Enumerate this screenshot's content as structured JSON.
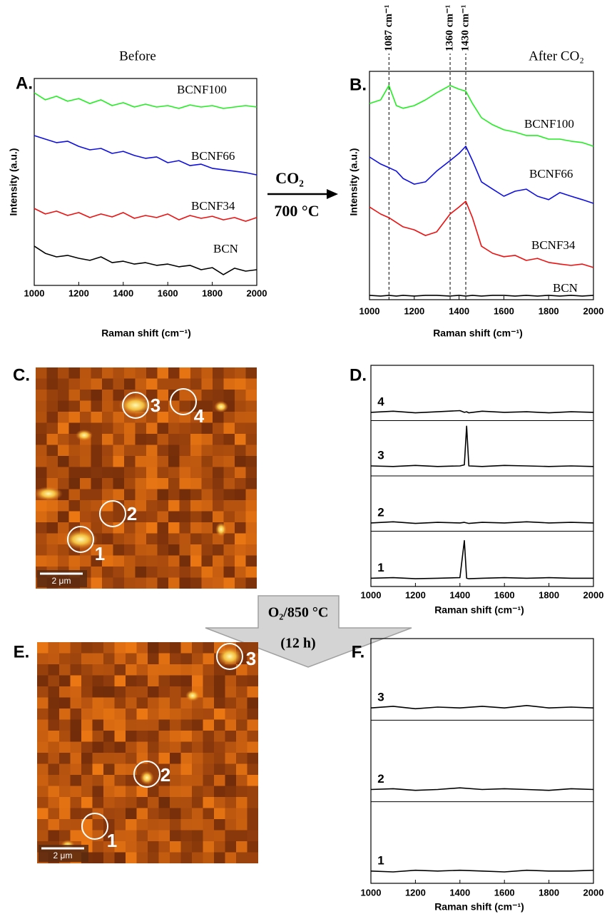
{
  "chart_data": [
    {
      "type": "line",
      "panel_label": "A.",
      "title": "Before",
      "y_label": "Intensity (a.u.)",
      "x_label": "Raman shift (cm⁻¹)",
      "xlim": [
        1000,
        2000
      ],
      "xticks": [
        1000,
        1200,
        1400,
        1600,
        1800,
        2000
      ],
      "ylim": [
        0,
        10
      ],
      "x": [
        1000,
        1050,
        1100,
        1150,
        1200,
        1250,
        1300,
        1350,
        1400,
        1450,
        1500,
        1550,
        1600,
        1650,
        1700,
        1750,
        1800,
        1850,
        1900,
        1950,
        2000
      ],
      "series": [
        {
          "name": "BCNF100",
          "color": "#22ee22",
          "values": [
            9.31,
            8.97,
            9.14,
            8.9,
            9.03,
            8.79,
            8.97,
            8.69,
            8.83,
            8.62,
            8.76,
            8.62,
            8.69,
            8.55,
            8.72,
            8.62,
            8.69,
            8.55,
            8.62,
            8.69,
            8.62
          ]
        },
        {
          "name": "BCNF66",
          "color": "#1010e0",
          "values": [
            7.24,
            7.07,
            6.9,
            6.97,
            6.72,
            6.55,
            6.62,
            6.38,
            6.48,
            6.28,
            6.14,
            6.21,
            5.93,
            6.03,
            5.79,
            5.86,
            5.66,
            5.59,
            5.52,
            5.45,
            5.34
          ]
        },
        {
          "name": "BCNF34",
          "color": "#ee1111",
          "values": [
            3.72,
            3.45,
            3.59,
            3.38,
            3.52,
            3.28,
            3.45,
            3.31,
            3.52,
            3.24,
            3.38,
            3.28,
            3.45,
            3.17,
            3.38,
            3.24,
            3.34,
            3.17,
            3.28,
            3.1,
            3.28
          ]
        },
        {
          "name": "BCN",
          "color": "#000000",
          "values": [
            1.9,
            1.55,
            1.38,
            1.45,
            1.31,
            1.21,
            1.38,
            1.1,
            1.17,
            1.03,
            1.1,
            0.97,
            1.03,
            0.9,
            0.97,
            0.76,
            0.86,
            0.52,
            0.83,
            0.69,
            0.76
          ]
        }
      ]
    },
    {
      "type": "line",
      "panel_label": "B.",
      "title": "After CO₂",
      "y_label": "Intensity (a.u.)",
      "x_label": "Raman shift (cm⁻¹)",
      "xlim": [
        1000,
        2000
      ],
      "xticks": [
        1000,
        1200,
        1400,
        1600,
        1800,
        2000
      ],
      "ylim": [
        0,
        10
      ],
      "markers": [
        {
          "value": 1087,
          "label": "1087 cm⁻¹"
        },
        {
          "value": 1360,
          "label": "1360 cm⁻¹"
        },
        {
          "value": 1430,
          "label": "1430 cm⁻¹"
        }
      ],
      "x": [
        1000,
        1050,
        1087,
        1120,
        1150,
        1200,
        1250,
        1300,
        1360,
        1400,
        1430,
        1460,
        1500,
        1550,
        1600,
        1650,
        1700,
        1750,
        1800,
        1850,
        1900,
        1950,
        2000
      ],
      "series": [
        {
          "name": "BCNF100",
          "color": "#22ee22",
          "values": [
            8.59,
            8.75,
            9.38,
            8.5,
            8.38,
            8.5,
            8.75,
            9.06,
            9.38,
            9.22,
            9.13,
            8.59,
            7.97,
            7.66,
            7.44,
            7.34,
            7.19,
            7.19,
            7.03,
            7.03,
            6.94,
            6.88,
            6.72
          ]
        },
        {
          "name": "BCNF66",
          "color": "#1010e0",
          "values": [
            6.25,
            5.94,
            5.78,
            5.63,
            5.31,
            5.06,
            5.16,
            5.63,
            6.09,
            6.41,
            6.72,
            6.09,
            5.16,
            4.84,
            4.53,
            4.75,
            4.84,
            4.53,
            4.38,
            4.69,
            4.53,
            4.38,
            4.22
          ]
        },
        {
          "name": "BCNF34",
          "color": "#ee1111",
          "values": [
            4.06,
            3.75,
            3.59,
            3.38,
            3.19,
            3.06,
            2.81,
            2.97,
            3.75,
            4.06,
            4.31,
            3.59,
            2.34,
            2.03,
            1.88,
            1.94,
            1.72,
            1.81,
            1.63,
            1.56,
            1.5,
            1.56,
            1.41
          ]
        },
        {
          "name": "BCN",
          "color": "#000000",
          "values": [
            0.19,
            0.16,
            0.19,
            0.16,
            0.19,
            0.16,
            0.19,
            0.19,
            0.16,
            0.19,
            0.16,
            0.19,
            0.16,
            0.19,
            0.19,
            0.16,
            0.19,
            0.16,
            0.19,
            0.16,
            0.19,
            0.16,
            0.19
          ]
        }
      ]
    },
    {
      "type": "line",
      "panel_label": "D.",
      "x_label": "Raman shift (cm⁻¹)",
      "xlim": [
        1000,
        2000
      ],
      "xticks": [
        1000,
        1200,
        1400,
        1600,
        1800,
        2000
      ],
      "ylim": [
        0,
        4
      ],
      "x": [
        1000,
        1100,
        1200,
        1300,
        1400,
        1420,
        1430,
        1440,
        1500,
        1600,
        1700,
        1800,
        1900,
        2000
      ],
      "series": [
        {
          "name": "4",
          "color": "#000000",
          "values": [
            3.15,
            3.17,
            3.14,
            3.16,
            3.18,
            3.15,
            3.16,
            3.14,
            3.17,
            3.15,
            3.16,
            3.14,
            3.16,
            3.15
          ]
        },
        {
          "name": "3",
          "color": "#000000",
          "values": [
            2.18,
            2.17,
            2.19,
            2.17,
            2.18,
            2.2,
            2.9,
            2.18,
            2.17,
            2.19,
            2.18,
            2.17,
            2.18,
            2.17
          ]
        },
        {
          "name": "2",
          "color": "#000000",
          "values": [
            1.15,
            1.17,
            1.14,
            1.16,
            1.15,
            1.16,
            1.15,
            1.14,
            1.16,
            1.15,
            1.17,
            1.15,
            1.16,
            1.15
          ]
        },
        {
          "name": "1",
          "color": "#000000",
          "values": [
            0.15,
            0.16,
            0.14,
            0.15,
            0.16,
            0.83,
            0.15,
            0.14,
            0.15,
            0.16,
            0.15,
            0.16,
            0.15,
            0.15
          ]
        }
      ]
    },
    {
      "type": "line",
      "panel_label": "F.",
      "x_label": "Raman shift (cm⁻¹)",
      "xlim": [
        1000,
        2000
      ],
      "xticks": [
        1000,
        1200,
        1400,
        1600,
        1800,
        2000
      ],
      "ylim": [
        0,
        3
      ],
      "x": [
        1000,
        1100,
        1200,
        1300,
        1400,
        1500,
        1600,
        1700,
        1800,
        1900,
        2000
      ],
      "series": [
        {
          "name": "3",
          "color": "#000000",
          "values": [
            2.15,
            2.17,
            2.14,
            2.16,
            2.15,
            2.17,
            2.15,
            2.18,
            2.15,
            2.16,
            2.15
          ]
        },
        {
          "name": "2",
          "color": "#000000",
          "values": [
            1.15,
            1.16,
            1.14,
            1.15,
            1.17,
            1.15,
            1.16,
            1.15,
            1.14,
            1.16,
            1.15
          ]
        },
        {
          "name": "1",
          "color": "#000000",
          "values": [
            0.15,
            0.14,
            0.16,
            0.15,
            0.16,
            0.15,
            0.14,
            0.16,
            0.15,
            0.15,
            0.16
          ]
        }
      ]
    }
  ],
  "treatment_arrow": {
    "gas": "CO₂",
    "temperature": "700 °C"
  },
  "process_arrow": {
    "condition": "O₂/850 °C",
    "duration": "(12 h)"
  },
  "images": [
    {
      "panel_label": "C.",
      "scale_bar": "2 μm",
      "spots": [
        "1",
        "2",
        "3",
        "4"
      ]
    },
    {
      "panel_label": "E.",
      "scale_bar": "2 μm",
      "spots": [
        "1",
        "2",
        "3"
      ]
    }
  ]
}
